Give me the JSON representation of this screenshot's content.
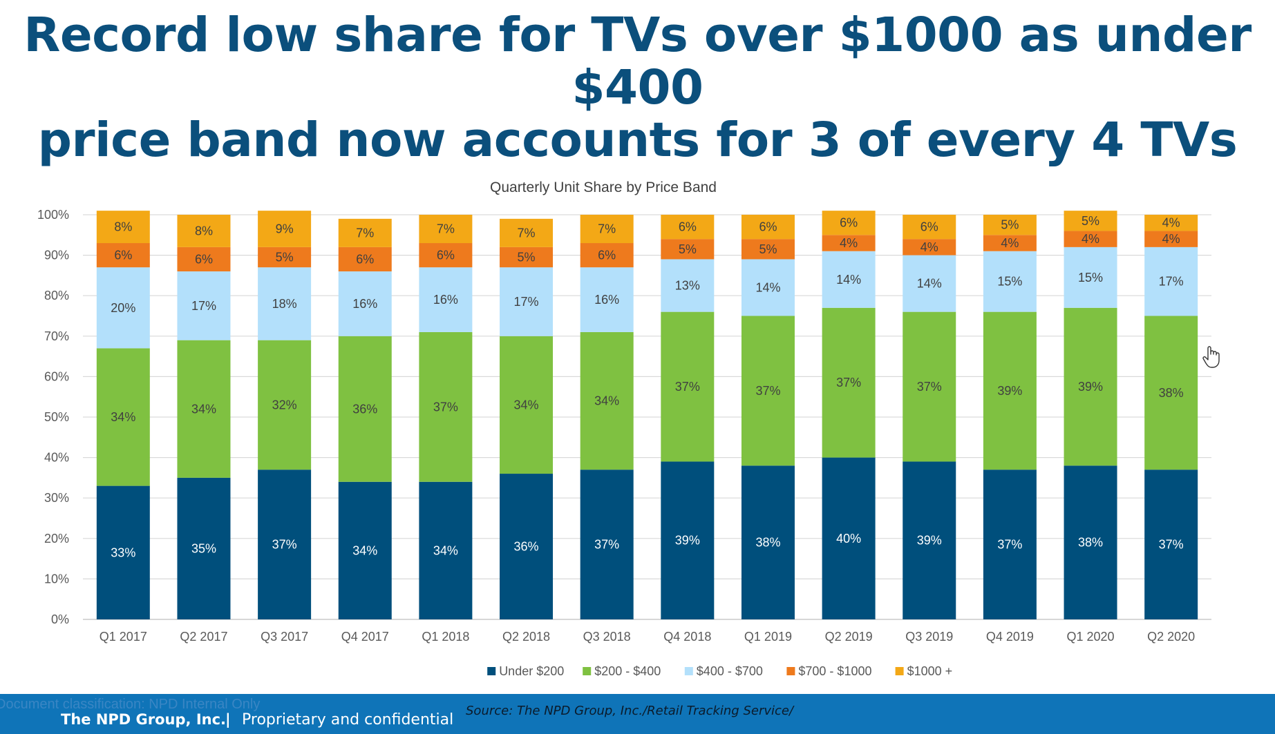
{
  "slide": {
    "title_line1": "Record low share for TVs over $1000 as under $400",
    "title_line2": "price band now accounts for 3 of every 4 TVs"
  },
  "footer": {
    "classification": "Document classification: NPD Internal Only",
    "company": "The NPD Group, Inc.",
    "separator": "|",
    "confidential": "Proprietary and confidential",
    "source": "Source: The NPD Group, Inc./Retail Tracking Service/"
  },
  "cursor": {
    "icon": "hand-pointer-icon"
  },
  "chart_data": {
    "type": "bar",
    "stacked": true,
    "title": "Quarterly Unit Share by Price Band",
    "xlabel": "",
    "ylabel": "",
    "ylim": [
      0,
      100
    ],
    "yticks": [
      "0%",
      "10%",
      "20%",
      "30%",
      "40%",
      "50%",
      "60%",
      "70%",
      "80%",
      "90%",
      "100%"
    ],
    "grid": true,
    "legend_position": "bottom",
    "categories": [
      "Q1 2017",
      "Q2 2017",
      "Q3 2017",
      "Q4 2017",
      "Q1 2018",
      "Q2 2018",
      "Q3 2018",
      "Q4 2018",
      "Q1 2019",
      "Q2 2019",
      "Q3 2019",
      "Q4 2019",
      "Q1 2020",
      "Q2 2020"
    ],
    "series": [
      {
        "name": "Under $200",
        "color": "#004f7c",
        "label_color": "#ffffff",
        "values": [
          33,
          35,
          37,
          34,
          34,
          36,
          37,
          39,
          38,
          40,
          39,
          37,
          38,
          37
        ]
      },
      {
        "name": "$200 - $400",
        "color": "#7fc141",
        "label_color": "#404040",
        "values": [
          34,
          34,
          32,
          36,
          37,
          34,
          34,
          37,
          37,
          37,
          37,
          39,
          39,
          38
        ]
      },
      {
        "name": "$400 - $700",
        "color": "#b3e0fb",
        "label_color": "#404040",
        "values": [
          20,
          17,
          18,
          16,
          16,
          17,
          16,
          13,
          14,
          14,
          14,
          15,
          15,
          17
        ]
      },
      {
        "name": "$700 - $1000",
        "color": "#ee7a1d",
        "label_color": "#404040",
        "values": [
          6,
          6,
          5,
          6,
          6,
          5,
          6,
          5,
          5,
          4,
          4,
          4,
          4,
          4
        ]
      },
      {
        "name": "$1000 +",
        "color": "#f3a816",
        "label_color": "#404040",
        "values": [
          8,
          8,
          9,
          7,
          7,
          7,
          7,
          6,
          6,
          6,
          6,
          5,
          5,
          4
        ]
      }
    ]
  }
}
